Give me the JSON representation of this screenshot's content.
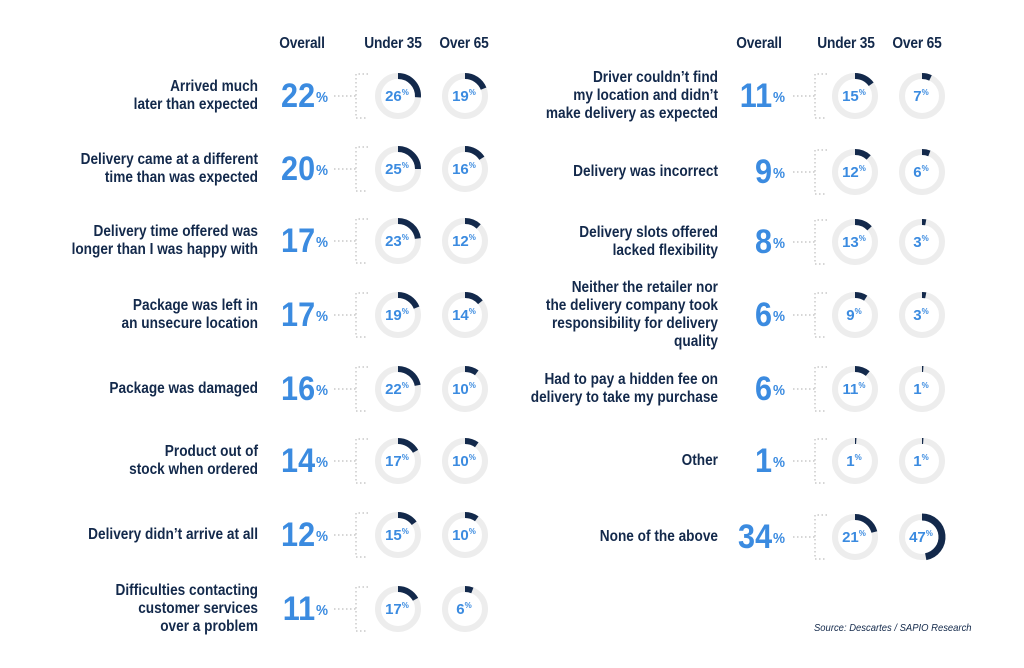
{
  "chart_data": {
    "type": "donut-grid",
    "source": "Source: Descartes / SAPIO Research",
    "headers": {
      "overall": "Overall",
      "under35": "Under 35",
      "over65": "Over 65"
    },
    "colors": {
      "value": "#3b8be0",
      "text": "#13294b",
      "arc": "#13294b",
      "track": "#ededed",
      "dots": "#bdbdbd"
    },
    "left": [
      {
        "label": [
          "Arrived much",
          "later than expected"
        ],
        "overall": 22,
        "under35": 26,
        "over65": 19
      },
      {
        "label": [
          "Delivery came at a different",
          "time than was expected"
        ],
        "overall": 20,
        "under35": 25,
        "over65": 16
      },
      {
        "label": [
          "Delivery time offered was",
          "longer than I was happy with"
        ],
        "overall": 17,
        "under35": 23,
        "over65": 12
      },
      {
        "label": [
          "Package was left in",
          "an unsecure location"
        ],
        "overall": 17,
        "under35": 19,
        "over65": 14
      },
      {
        "label": [
          "Package was damaged"
        ],
        "overall": 16,
        "under35": 22,
        "over65": 10
      },
      {
        "label": [
          "Product out of",
          "stock when ordered"
        ],
        "overall": 14,
        "under35": 17,
        "over65": 10
      },
      {
        "label": [
          "Delivery didn’t arrive at all"
        ],
        "overall": 12,
        "under35": 15,
        "over65": 10
      },
      {
        "label": [
          "Difficulties contacting",
          "customer services",
          "over a problem"
        ],
        "overall": 11,
        "under35": 17,
        "over65": 6
      }
    ],
    "right": [
      {
        "label": [
          "Driver couldn’t find",
          "my location and didn’t",
          "make delivery as expected"
        ],
        "overall": 11,
        "under35": 15,
        "over65": 7
      },
      {
        "label": [
          "Delivery was incorrect"
        ],
        "overall": 9,
        "under35": 12,
        "over65": 6
      },
      {
        "label": [
          "Delivery slots offered",
          "lacked flexibility"
        ],
        "overall": 8,
        "under35": 13,
        "over65": 3
      },
      {
        "label": [
          "Neither the retailer nor",
          "the delivery company took",
          "responsibility for delivery quality"
        ],
        "overall": 6,
        "under35": 9,
        "over65": 3
      },
      {
        "label": [
          "Had to pay a hidden fee on",
          "delivery to take my purchase"
        ],
        "overall": 6,
        "under35": 11,
        "over65": 1
      },
      {
        "label": [
          "Other"
        ],
        "overall": 1,
        "under35": 1,
        "over65": 1
      },
      {
        "label": [
          "None of the above"
        ],
        "overall": 34,
        "under35": 21,
        "over65": 47
      }
    ]
  }
}
